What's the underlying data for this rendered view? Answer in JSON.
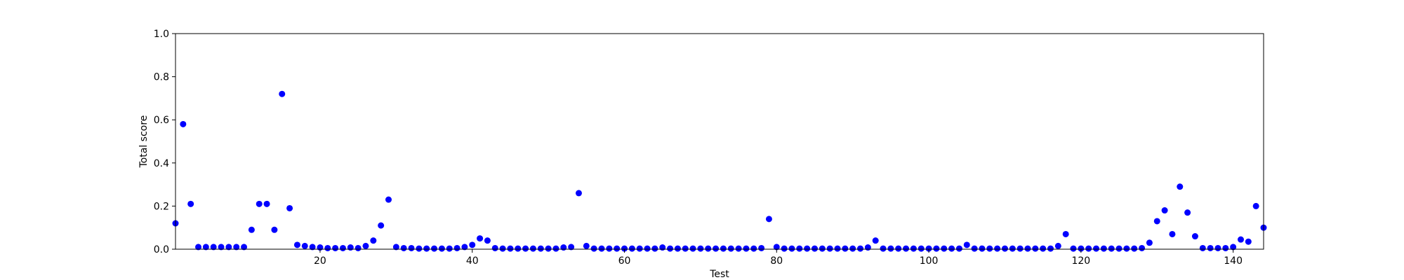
{
  "chart_data": {
    "type": "scatter",
    "title": "",
    "xlabel": "Test",
    "ylabel": "Total score",
    "xlim": [
      1,
      144
    ],
    "ylim": [
      0.0,
      1.0
    ],
    "xticks": [
      20,
      40,
      60,
      80,
      100,
      120,
      140
    ],
    "xtick_labels": [
      "20",
      "40",
      "60",
      "80",
      "100",
      "120",
      "140"
    ],
    "yticks": [
      0.0,
      0.2,
      0.4,
      0.6,
      0.8,
      1.0
    ],
    "ytick_labels": [
      "0.0",
      "0.2",
      "0.4",
      "0.6",
      "0.8",
      "1.0"
    ],
    "grid": false,
    "marker_color": "#0000ff",
    "series": [
      {
        "x": [
          1,
          2,
          3,
          4,
          5,
          6,
          7,
          8,
          9,
          10,
          11,
          12,
          13,
          14,
          15,
          16,
          17,
          18,
          19,
          20,
          21,
          22,
          23,
          24,
          25,
          26,
          27,
          28,
          29,
          30,
          31,
          32,
          33,
          34,
          35,
          36,
          37,
          38,
          39,
          40,
          41,
          42,
          43,
          44,
          45,
          46,
          47,
          48,
          49,
          50,
          51,
          52,
          53,
          54,
          55,
          56,
          57,
          58,
          59,
          60,
          61,
          62,
          63,
          64,
          65,
          66,
          67,
          68,
          69,
          70,
          71,
          72,
          73,
          74,
          75,
          76,
          77,
          78,
          79,
          80,
          81,
          82,
          83,
          84,
          85,
          86,
          87,
          88,
          89,
          90,
          91,
          92,
          93,
          94,
          95,
          96,
          97,
          98,
          99,
          100,
          101,
          102,
          103,
          104,
          105,
          106,
          107,
          108,
          109,
          110,
          111,
          112,
          113,
          114,
          115,
          116,
          117,
          118,
          119,
          120,
          121,
          122,
          123,
          124,
          125,
          126,
          127,
          128,
          129,
          130,
          131,
          132,
          133,
          134,
          135,
          136,
          137,
          138,
          139,
          140,
          141,
          142,
          143,
          144
        ],
        "y": [
          0.12,
          0.58,
          0.21,
          0.01,
          0.01,
          0.01,
          0.01,
          0.01,
          0.01,
          0.01,
          0.09,
          0.21,
          0.21,
          0.09,
          0.72,
          0.19,
          0.02,
          0.015,
          0.01,
          0.008,
          0.005,
          0.005,
          0.005,
          0.008,
          0.005,
          0.015,
          0.04,
          0.11,
          0.23,
          0.01,
          0.005,
          0.005,
          0.003,
          0.003,
          0.003,
          0.003,
          0.003,
          0.005,
          0.01,
          0.02,
          0.05,
          0.04,
          0.005,
          0.003,
          0.003,
          0.003,
          0.003,
          0.003,
          0.003,
          0.003,
          0.003,
          0.008,
          0.01,
          0.26,
          0.015,
          0.003,
          0.003,
          0.003,
          0.003,
          0.003,
          0.003,
          0.003,
          0.003,
          0.003,
          0.008,
          0.003,
          0.003,
          0.003,
          0.003,
          0.003,
          0.003,
          0.003,
          0.003,
          0.003,
          0.003,
          0.003,
          0.003,
          0.005,
          0.14,
          0.01,
          0.003,
          0.003,
          0.003,
          0.003,
          0.003,
          0.003,
          0.003,
          0.003,
          0.003,
          0.003,
          0.003,
          0.008,
          0.04,
          0.003,
          0.003,
          0.003,
          0.003,
          0.003,
          0.003,
          0.003,
          0.003,
          0.003,
          0.003,
          0.003,
          0.02,
          0.003,
          0.003,
          0.003,
          0.003,
          0.003,
          0.003,
          0.003,
          0.003,
          0.003,
          0.003,
          0.003,
          0.015,
          0.07,
          0.003,
          0.003,
          0.003,
          0.003,
          0.003,
          0.003,
          0.003,
          0.003,
          0.003,
          0.005,
          0.03,
          0.13,
          0.18,
          0.07,
          0.29,
          0.17,
          0.06,
          0.005,
          0.005,
          0.005,
          0.005,
          0.01,
          0.045,
          0.035,
          0.2,
          0.1
        ]
      }
    ]
  }
}
